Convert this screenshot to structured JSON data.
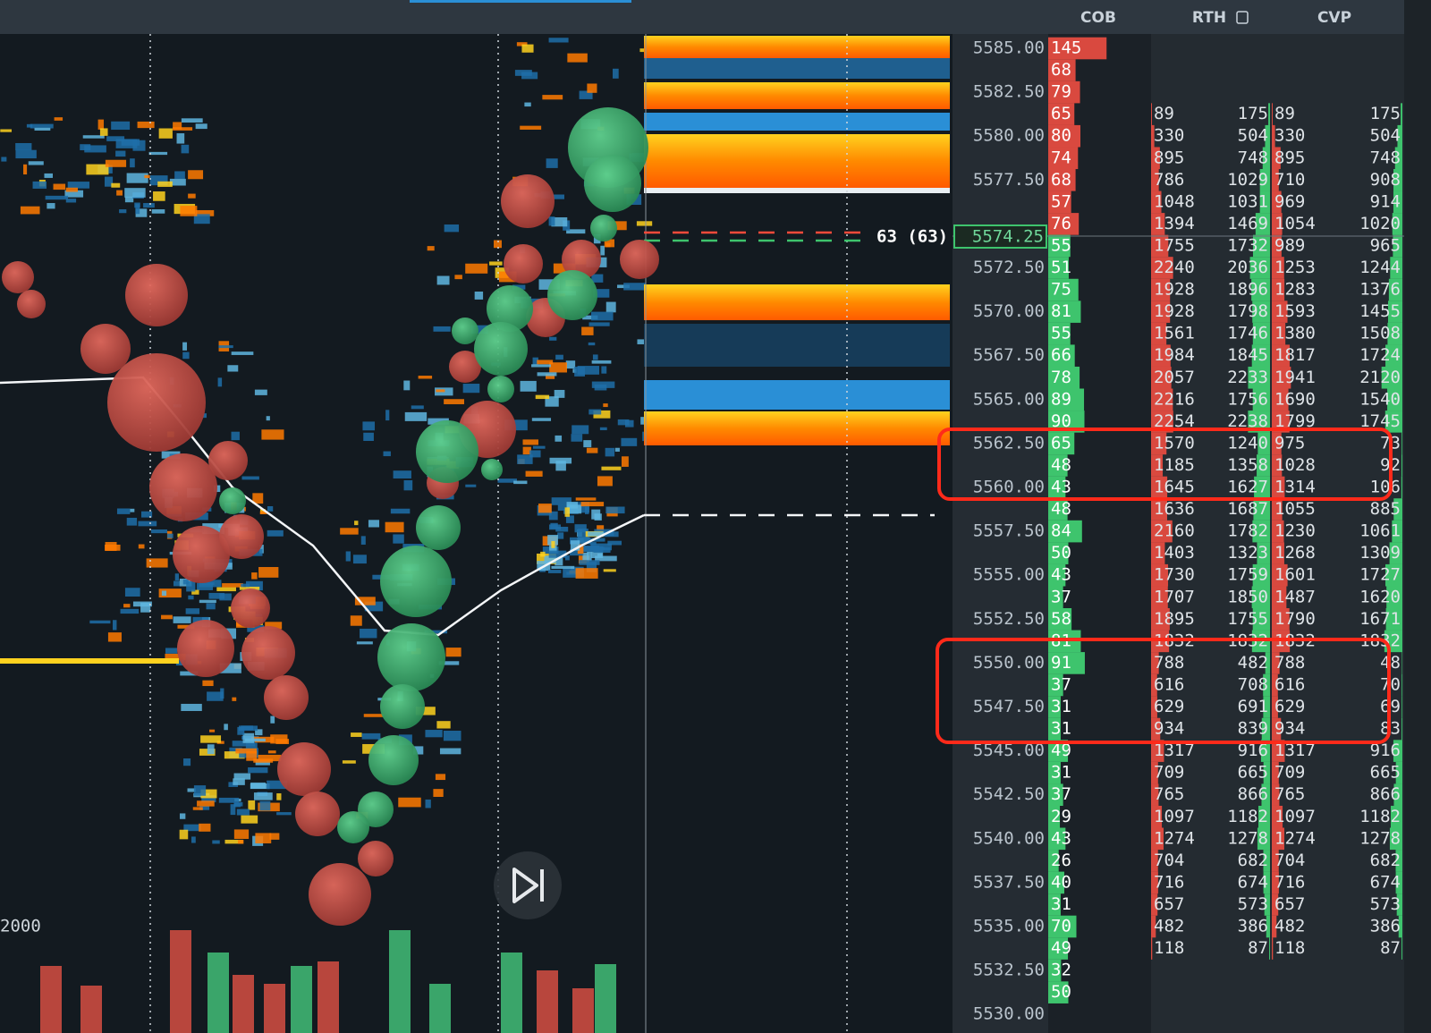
{
  "header": {
    "columns": [
      "COB",
      "RTH",
      "CVP"
    ]
  },
  "chart": {
    "axis_label": "2000",
    "marker_label": "63 (63)"
  },
  "ladder": {
    "current_price": "5574.25",
    "prices": [
      "5585.00",
      null,
      "5582.50",
      null,
      "5580.00",
      null,
      "5577.50",
      null,
      null,
      null,
      "5572.50",
      null,
      "5570.00",
      null,
      "5567.50",
      null,
      "5565.00",
      null,
      "5562.50",
      null,
      "5560.00",
      null,
      "5557.50",
      null,
      "5555.00",
      null,
      "5552.50",
      null,
      "5550.00",
      null,
      "5547.50",
      null,
      "5545.00",
      null,
      "5542.50",
      null,
      "5540.00",
      null,
      "5537.50",
      null,
      "5535.00",
      null,
      "5532.50",
      null,
      "5530.00"
    ],
    "cob": [
      145,
      68,
      79,
      65,
      80,
      74,
      68,
      57,
      76,
      55,
      51,
      75,
      81,
      55,
      66,
      78,
      89,
      90,
      65,
      48,
      43,
      48,
      84,
      50,
      43,
      37,
      58,
      81,
      91,
      37,
      31,
      31,
      49,
      31,
      37,
      29,
      43,
      26,
      40,
      31,
      70,
      49,
      32,
      50
    ],
    "rth": {
      "left": [
        null,
        null,
        null,
        89,
        330,
        895,
        786,
        1048,
        1394,
        1755,
        2240,
        1928,
        1928,
        1561,
        1984,
        2057,
        2216,
        2254,
        1570,
        1185,
        1645,
        1636,
        2160,
        1403,
        1730,
        1707,
        1895,
        1832,
        788,
        616,
        629,
        934,
        1317,
        709,
        765,
        1097,
        1274,
        704,
        716,
        657,
        482,
        118
      ],
      "right": [
        null,
        null,
        null,
        175,
        504,
        748,
        1029,
        1031,
        1469,
        1732,
        2036,
        1896,
        1798,
        1746,
        1845,
        2233,
        1756,
        2238,
        1240,
        1358,
        1627,
        1687,
        1782,
        1323,
        1759,
        1850,
        1755,
        1832,
        482,
        708,
        691,
        839,
        916,
        665,
        866,
        1182,
        1278,
        682,
        674,
        573,
        386,
        87
      ]
    },
    "cvp": {
      "left": [
        null,
        null,
        null,
        89,
        330,
        895,
        710,
        969,
        1054,
        989,
        1253,
        1283,
        1593,
        1380,
        1817,
        1941,
        1690,
        1799,
        975,
        1028,
        1314,
        1055,
        1230,
        1268,
        1601,
        1487,
        1790,
        1832,
        788,
        616,
        629,
        934,
        1317,
        709,
        765,
        1097,
        1274,
        704,
        716,
        657,
        482,
        118
      ],
      "right": [
        null,
        null,
        null,
        175,
        504,
        748,
        908,
        914,
        1020,
        965,
        1244,
        1376,
        1455,
        1508,
        1724,
        2120,
        1540,
        1745,
        73,
        92,
        106,
        885,
        1061,
        1309,
        1727,
        1620,
        1671,
        1832,
        48,
        70,
        69,
        83,
        916,
        665,
        866,
        1182,
        1278,
        682,
        674,
        573,
        386,
        87
      ]
    }
  }
}
